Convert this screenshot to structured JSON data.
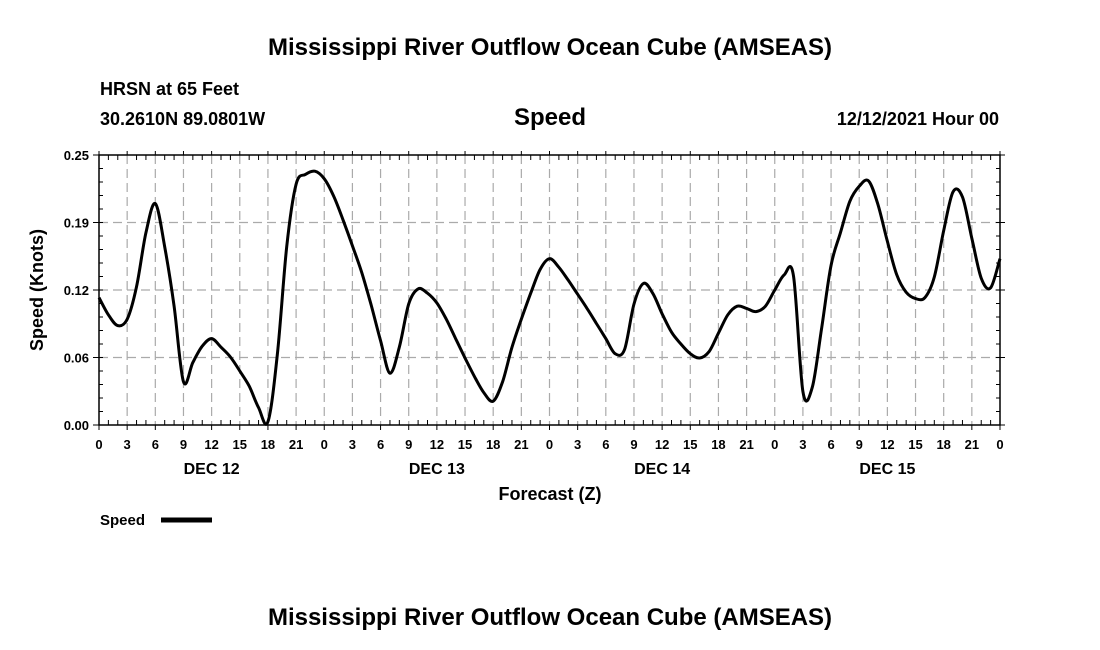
{
  "chart_data": {
    "type": "line",
    "title": "Mississippi River Outflow Ocean Cube (AMSEAS)",
    "subtitle": "Speed",
    "station": "HRSN at 65 Feet",
    "location": "30.2610N  89.0801W",
    "datetime": "12/12/2021 Hour 00",
    "xlabel": "Forecast (Z)",
    "ylabel": "Speed (Knots)",
    "ylim": [
      0,
      0.25
    ],
    "xlim": [
      0,
      96
    ],
    "yticks": [
      "0.00",
      "0.06",
      "0.12",
      "0.19",
      "0.25"
    ],
    "ytick_values": [
      0,
      0.0625,
      0.125,
      0.1875,
      0.25
    ],
    "xticks": [
      "0",
      "3",
      "6",
      "9",
      "12",
      "15",
      "18",
      "21",
      "0",
      "3",
      "6",
      "9",
      "12",
      "15",
      "18",
      "21",
      "0",
      "3",
      "6",
      "9",
      "12",
      "15",
      "18",
      "21",
      "0",
      "3",
      "6",
      "9",
      "12",
      "15",
      "18",
      "21",
      "0"
    ],
    "day_labels": [
      "DEC 12",
      "DEC 13",
      "DEC 14",
      "DEC 15"
    ],
    "day_label_hours": [
      12,
      36,
      60,
      84
    ],
    "grid": true,
    "legend_position": "bottom-left",
    "series": [
      {
        "name": "Speed",
        "color": "#000000",
        "x": [
          0,
          1,
          2,
          3,
          4,
          5,
          6,
          7,
          8,
          9,
          10,
          11,
          12,
          13,
          14,
          15,
          16,
          17,
          18,
          19,
          20,
          21,
          22,
          23,
          24,
          25,
          26,
          27,
          28,
          29,
          30,
          31,
          32,
          33,
          34,
          35,
          36,
          37,
          38,
          39,
          40,
          41,
          42,
          43,
          44,
          45,
          46,
          47,
          48,
          49,
          50,
          51,
          52,
          53,
          54,
          55,
          56,
          57,
          58,
          59,
          60,
          61,
          62,
          63,
          64,
          65,
          66,
          67,
          68,
          69,
          70,
          71,
          72,
          73,
          74,
          75,
          76,
          77,
          78,
          79,
          80,
          81,
          82,
          83,
          84,
          85,
          86,
          87,
          88,
          89,
          90,
          91,
          92,
          93,
          94,
          95,
          96
        ],
        "values": [
          0.118,
          0.102,
          0.092,
          0.098,
          0.128,
          0.178,
          0.205,
          0.165,
          0.11,
          0.04,
          0.058,
          0.073,
          0.08,
          0.072,
          0.063,
          0.05,
          0.036,
          0.016,
          0.003,
          0.065,
          0.165,
          0.223,
          0.232,
          0.235,
          0.228,
          0.212,
          0.19,
          0.166,
          0.141,
          0.111,
          0.078,
          0.048,
          0.072,
          0.112,
          0.126,
          0.122,
          0.113,
          0.098,
          0.08,
          0.062,
          0.045,
          0.03,
          0.022,
          0.04,
          0.072,
          0.098,
          0.122,
          0.144,
          0.154,
          0.146,
          0.134,
          0.121,
          0.108,
          0.094,
          0.08,
          0.066,
          0.07,
          0.112,
          0.131,
          0.122,
          0.103,
          0.086,
          0.075,
          0.066,
          0.062,
          0.068,
          0.085,
          0.102,
          0.11,
          0.108,
          0.105,
          0.11,
          0.125,
          0.139,
          0.138,
          0.031,
          0.035,
          0.09,
          0.148,
          0.178,
          0.207,
          0.221,
          0.226,
          0.204,
          0.17,
          0.139,
          0.123,
          0.117,
          0.118,
          0.137,
          0.18,
          0.216,
          0.211,
          0.173,
          0.136,
          0.127,
          0.154
        ]
      }
    ]
  },
  "legend": {
    "label": "Speed"
  },
  "footer": {
    "title": "Mississippi River Outflow Ocean Cube (AMSEAS)"
  }
}
